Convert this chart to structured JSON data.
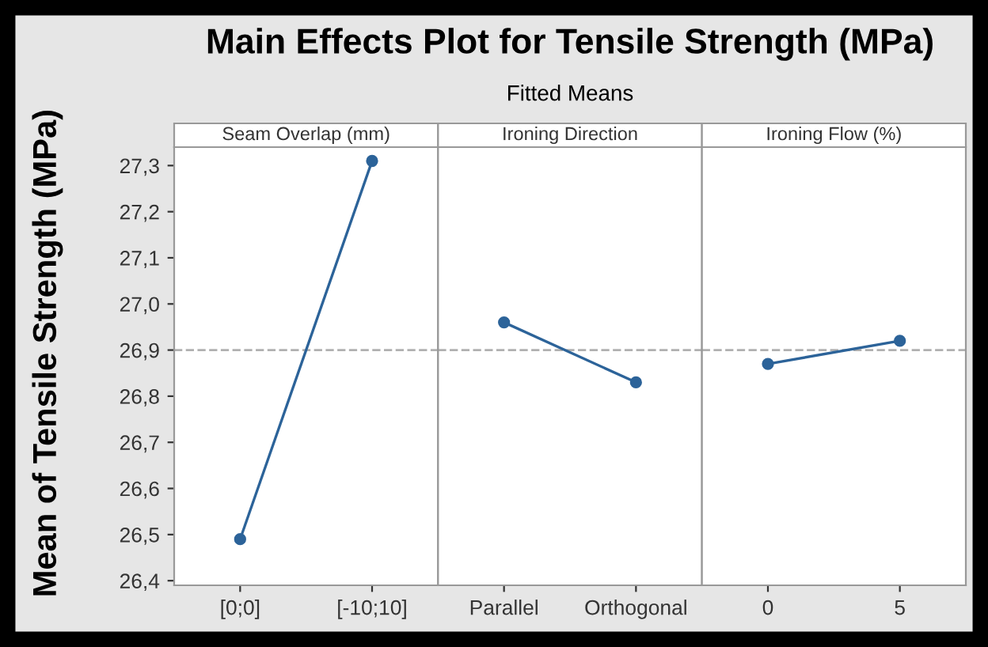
{
  "chart_data": [
    {
      "type": "line",
      "ylabel": "Mean of Tensile Strength (MPa)",
      "xlabel": "Seam Overlap (mm)",
      "categories": [
        "[0;0]",
        "[-10;10]"
      ],
      "series": [
        {
          "color": "#2c6399",
          "values": [
            26.49,
            27.31
          ]
        }
      ],
      "ylim": [
        26.39,
        27.34
      ],
      "yticks": [
        {
          "value": 26.4,
          "label": "26,4"
        },
        {
          "value": 26.5,
          "label": "26,5"
        },
        {
          "value": 26.6,
          "label": "26,6"
        },
        {
          "value": 26.7,
          "label": "26,7"
        },
        {
          "value": 26.8,
          "label": "26,8"
        },
        {
          "value": 26.9,
          "label": "26,9"
        },
        {
          "value": 27.0,
          "label": "27,0"
        },
        {
          "value": 27.1,
          "label": "27,1"
        },
        {
          "value": 27.2,
          "label": "27,2"
        },
        {
          "value": 27.3,
          "label": "27,3"
        }
      ],
      "ref_lines": [
        {
          "axis": "y",
          "value": 26.9,
          "color": "#b0b0b0",
          "line_style": "dashed"
        }
      ],
      "marker": "circle",
      "grid": false
    },
    {
      "type": "line",
      "title": "Main Effects Plot for Tensile Strength (MPa)",
      "subtitle": "Fitted Means",
      "xlabel": "Ironing Direction",
      "categories": [
        "Parallel",
        "Orthogonal"
      ],
      "series": [
        {
          "color": "#2c6399",
          "values": [
            26.96,
            26.83
          ]
        }
      ],
      "ylim": [
        26.39,
        27.34
      ],
      "tick_labels": "x",
      "ref_lines": [
        {
          "axis": "y",
          "value": 26.9,
          "color": "#b0b0b0",
          "line_style": "dashed"
        }
      ],
      "marker": "circle",
      "grid": false
    },
    {
      "type": "line",
      "xlabel": "Ironing Flow (%)",
      "categories": [
        "0",
        "5"
      ],
      "series": [
        {
          "color": "#2c6399",
          "values": [
            26.87,
            26.92
          ]
        }
      ],
      "ylim": [
        26.39,
        27.34
      ],
      "tick_labels": "x",
      "ref_lines": [
        {
          "axis": "y",
          "value": 26.9,
          "color": "#b0b0b0",
          "line_style": "dashed"
        }
      ],
      "marker": "circle",
      "grid": false
    }
  ]
}
